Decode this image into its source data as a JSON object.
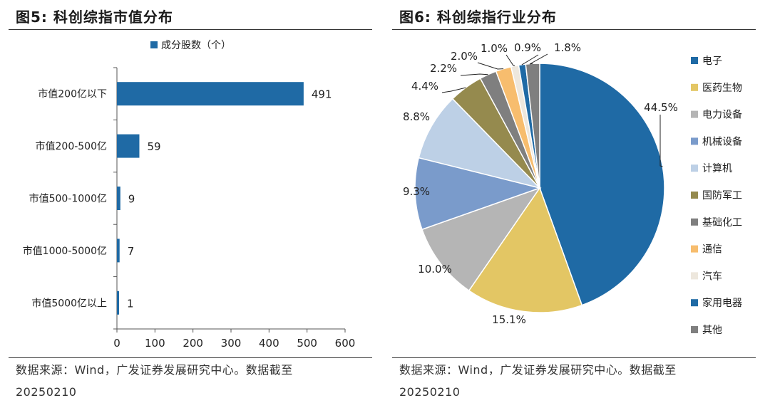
{
  "left": {
    "title": "图5:  科创综指市值分布",
    "source_line1": "数据来源：Wind，广发证券发展研究中心。数据截至",
    "source_line2": "20250210",
    "chart_data": {
      "type": "bar",
      "orientation": "horizontal",
      "categories": [
        "市值200亿以下",
        "市值200-500亿",
        "市值500-1000亿",
        "市值1000-5000亿",
        "市值5000亿以上"
      ],
      "series": [
        {
          "name": "成分股数（个）",
          "values": [
            491,
            59,
            9,
            7,
            1
          ]
        }
      ],
      "data_labels": [
        "491",
        "59",
        "9",
        "7",
        "1"
      ],
      "xlim": [
        0,
        600
      ],
      "xticks": [
        0,
        100,
        200,
        300,
        400,
        500,
        600
      ],
      "xtick_labels": [
        "0",
        "100",
        "200",
        "300",
        "400",
        "500",
        "600"
      ],
      "legend_position": "top-center",
      "grid": false,
      "color": "#1f6aa5"
    }
  },
  "right": {
    "title": "图6:  科创综指行业分布",
    "source_line1": "数据来源：Wind，广发证券发展研究中心。数据截至",
    "source_line2": "20250210",
    "chart_data": {
      "type": "pie",
      "slices": [
        {
          "label": "电子",
          "value": 44.5,
          "text": "44.5%",
          "color": "#1f6aa5"
        },
        {
          "label": "医药生物",
          "value": 15.1,
          "text": "15.1%",
          "color": "#e3c664"
        },
        {
          "label": "电力设备",
          "value": 10.0,
          "text": "10.0%",
          "color": "#b5b5b5"
        },
        {
          "label": "机械设备",
          "value": 9.3,
          "text": "9.3%",
          "color": "#7a9bcb"
        },
        {
          "label": "计算机",
          "value": 8.8,
          "text": "8.8%",
          "color": "#bdd0e6"
        },
        {
          "label": "国防军工",
          "value": 4.4,
          "text": "4.4%",
          "color": "#958a4e"
        },
        {
          "label": "基础化工",
          "value": 2.2,
          "text": "2.2%",
          "color": "#7f7f7f"
        },
        {
          "label": "通信",
          "value": 2.0,
          "text": "2.0%",
          "color": "#f7bd6e"
        },
        {
          "label": "汽车",
          "value": 1.0,
          "text": "1.0%",
          "color": "#ede7dd"
        },
        {
          "label": "家用电器",
          "value": 0.9,
          "text": "0.9%",
          "color": "#1f6aa5"
        },
        {
          "label": "其他",
          "value": 1.8,
          "text": "1.8%",
          "color": "#7f7f7f"
        }
      ],
      "start_angle_deg": 0,
      "direction": "clockwise",
      "legend_position": "right"
    }
  }
}
